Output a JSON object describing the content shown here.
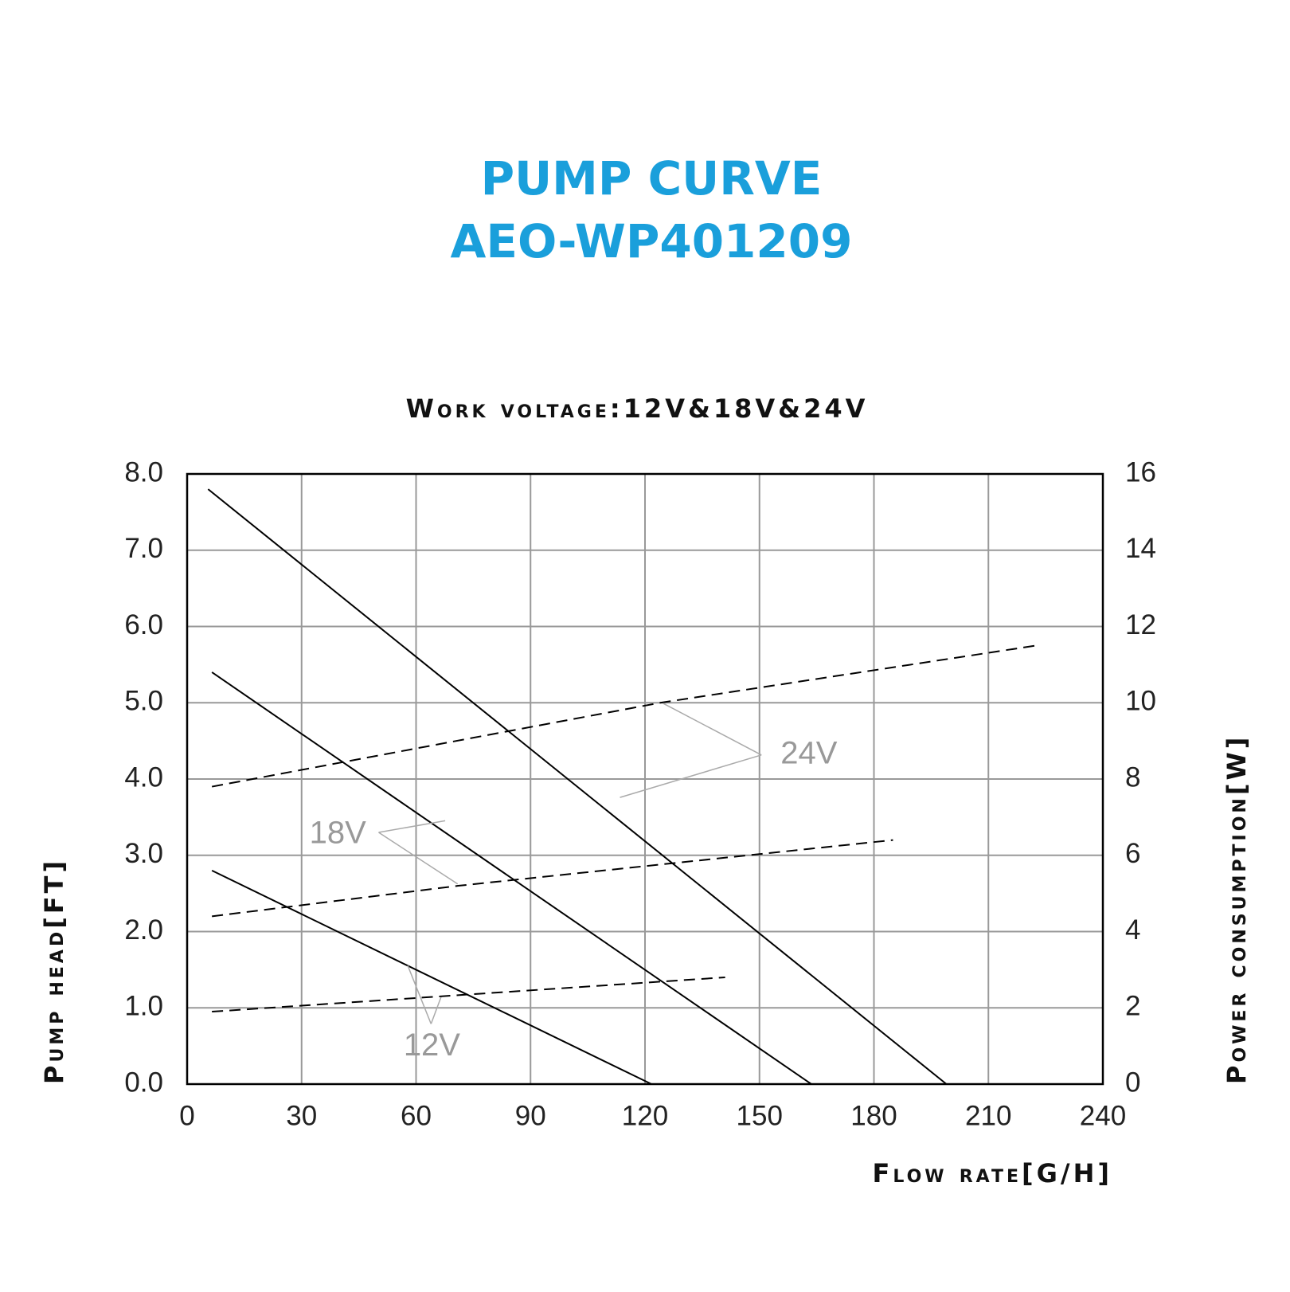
{
  "chart_data": {
    "type": "line",
    "title": "PUMP CURVE",
    "subtitle": "AEO-WP401209",
    "caption": "Work voltage:12V&18V&24V",
    "x_label": "Flow rate[G/H]",
    "y_label": "Pump head[FT]",
    "y2_label": "Power consumption[W]",
    "xlim": [
      0,
      240
    ],
    "xticks": [
      0,
      30,
      60,
      90,
      120,
      150,
      180,
      210,
      240
    ],
    "ylim": [
      0,
      8
    ],
    "yticks": [
      {
        "value": 0,
        "label": "0.0"
      },
      {
        "value": 1,
        "label": "1.0"
      },
      {
        "value": 2,
        "label": "2.0"
      },
      {
        "value": 3,
        "label": "3.0"
      },
      {
        "value": 4,
        "label": "4.0"
      },
      {
        "value": 5,
        "label": "5.0"
      },
      {
        "value": 6,
        "label": "6.0"
      },
      {
        "value": 7,
        "label": "7.0"
      },
      {
        "value": 8,
        "label": "8.0"
      }
    ],
    "y2lim": [
      0,
      16
    ],
    "y2ticks": [
      0,
      2,
      4,
      6,
      8,
      10,
      12,
      14,
      16
    ],
    "grid": true,
    "series": [
      {
        "color": "#000000",
        "dashed": false,
        "x": [
          5.5,
          199
        ],
        "values": [
          7.8,
          0
        ]
      },
      {
        "color": "#000000",
        "dashed": false,
        "x": [
          6.5,
          163.6
        ],
        "values": [
          5.4,
          0
        ]
      },
      {
        "color": "#000000",
        "dashed": false,
        "x": [
          6.5,
          121.7
        ],
        "values": [
          2.8,
          0
        ]
      },
      {
        "color": "#000000",
        "dashed": true,
        "axis": "y2",
        "x": [
          6.5,
          124,
          222.5
        ],
        "values": [
          7.8,
          10.0,
          11.5
        ]
      },
      {
        "color": "#000000",
        "dashed": true,
        "axis": "y2",
        "x": [
          6.5,
          71,
          185
        ],
        "values": [
          4.4,
          5.2,
          6.4
        ]
      },
      {
        "color": "#000000",
        "dashed": true,
        "axis": "y2",
        "x": [
          6.5,
          141
        ],
        "values": [
          1.9,
          2.8
        ]
      }
    ],
    "annotations": [
      "24V",
      "18V",
      "12V"
    ]
  }
}
